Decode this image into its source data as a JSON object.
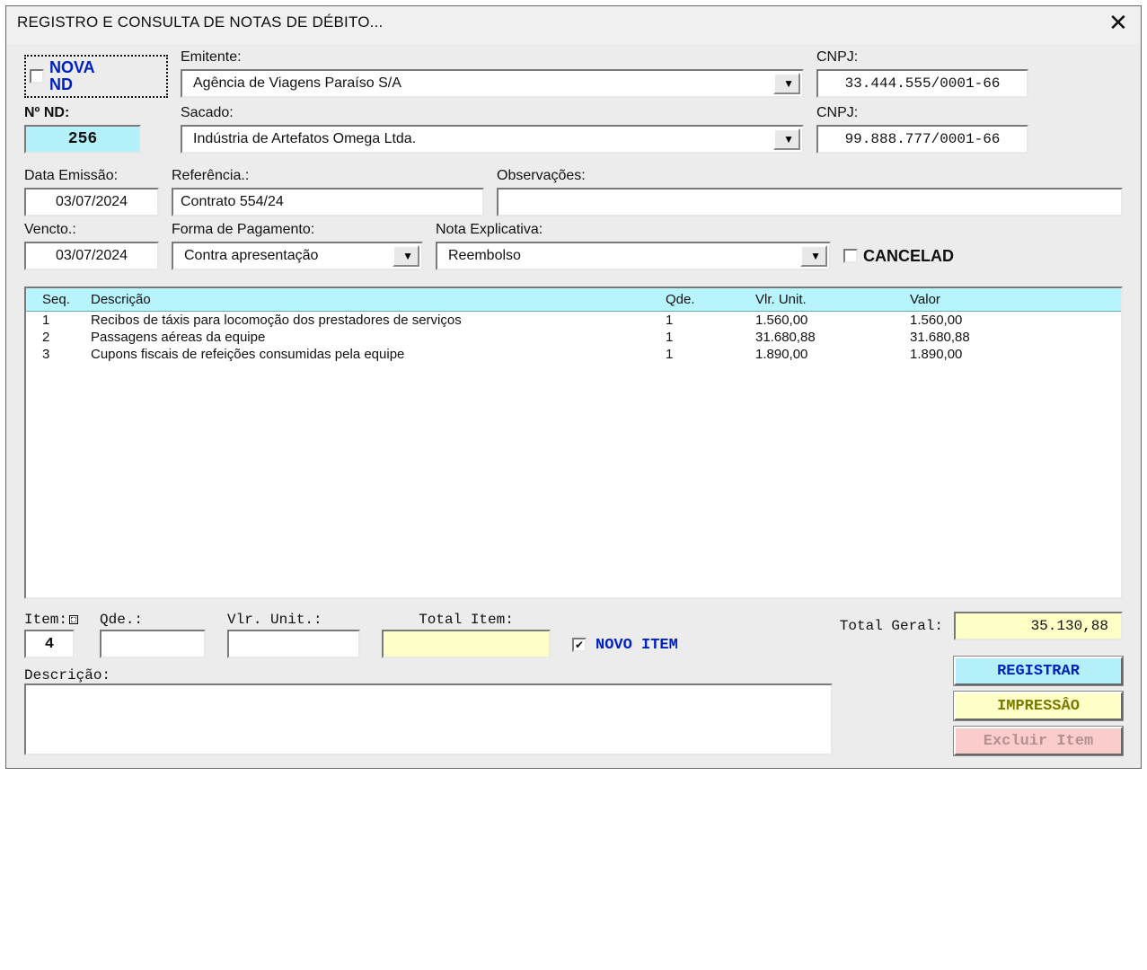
{
  "window": {
    "title": "REGISTRO E CONSULTA DE NOTAS DE DÉBITO..."
  },
  "novaNd": {
    "line1": "NOVA",
    "line2": "ND",
    "checked": false
  },
  "labels": {
    "emitente": "Emitente:",
    "cnpj": "CNPJ:",
    "sacado": "Sacado:",
    "noNd": "Nº ND:",
    "dataEmissao": "Data Emissão:",
    "referencia": "Referência.:",
    "observacoes": "Observações:",
    "vencto": "Vencto.:",
    "formaPag": "Forma de Pagamento:",
    "notaExpl": "Nota Explicativa:",
    "cancelad": "CANCELAD",
    "item": "Item:",
    "qde": "Qde.:",
    "vlrUnit": "Vlr. Unit.:",
    "totalItem": "Total Item:",
    "novoItem": "NOVO ITEM",
    "descricao": "Descrição:",
    "totalGeral": "Total Geral:"
  },
  "emitente": {
    "value": "Agência de Viagens Paraíso S/A",
    "cnpj": "33.444.555/0001-66"
  },
  "sacado": {
    "value": "Indústria de Artefatos Omega Ltda.",
    "cnpj": "99.888.777/0001-66"
  },
  "numeroNd": "256",
  "dataEmissao": "03/07/2024",
  "referencia": "Contrato 554/24",
  "observacoes": "",
  "vencto": "03/07/2024",
  "formaPagamento": "Contra apresentação",
  "notaExplicativa": "Reembolso",
  "cancelado": false,
  "grid": {
    "headers": {
      "seq": "Seq.",
      "descricao": "Descrição",
      "qde": "Qde.",
      "unit": "Vlr. Unit.",
      "valor": "Valor"
    },
    "rows": [
      {
        "seq": "1",
        "descricao": "Recibos de táxis para locomoção dos prestadores de serviços",
        "qde": "1",
        "unit": "1.560,00",
        "valor": "1.560,00"
      },
      {
        "seq": "2",
        "descricao": "Passagens aéreas da equipe",
        "qde": "1",
        "unit": "31.680,88",
        "valor": "31.680,88"
      },
      {
        "seq": "3",
        "descricao": "Cupons fiscais de refeições consumidas pela equipe",
        "qde": "1",
        "unit": "1.890,00",
        "valor": "1.890,00"
      }
    ]
  },
  "itemForm": {
    "item": "4",
    "qde": "",
    "unit": "",
    "totalItem": "",
    "novoItemChecked": true,
    "descricao": ""
  },
  "totalGeral": "35.130,88",
  "buttons": {
    "registrar": "REGISTRAR",
    "impressao": "IMPRESSÂO",
    "excluir": "Excluir Item"
  },
  "colors": {
    "windowBg": "#ececec",
    "highlightBlue": "#b3f0fa",
    "highlightYellow": "#feffc6",
    "gridHeader": "#b8f4fb",
    "deleteBtn": "#facccc",
    "linkBlue": "#0020c0"
  }
}
